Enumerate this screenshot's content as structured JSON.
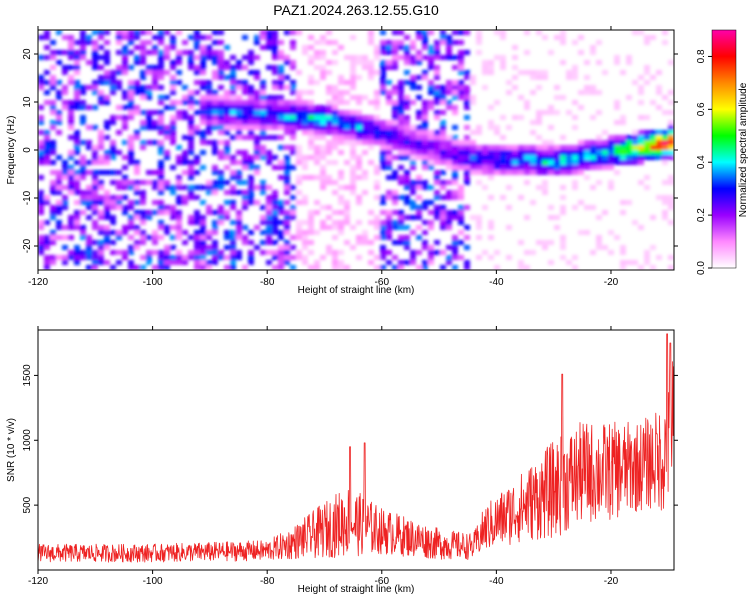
{
  "title": "PAZ1.2024.263.12.55.G10",
  "chart_data": [
    {
      "type": "heatmap",
      "xlabel": "Height of straight line (km)",
      "ylabel": "Frequency (Hz)",
      "xlim": [
        -120,
        -9
      ],
      "ylim": [
        -25,
        25
      ],
      "x_ticks": [
        -120,
        -100,
        -80,
        -60,
        -40,
        -20
      ],
      "y_ticks": [
        -20,
        -10,
        0,
        10,
        20
      ],
      "colorbar": {
        "label": "Normalized spectral amplitude",
        "range": [
          0,
          0.9
        ],
        "ticks": [
          0.0,
          0.2,
          0.4,
          0.6,
          0.8
        ],
        "colors": [
          "#ffffff",
          "#ff88ff",
          "#9900ff",
          "#0000ff",
          "#00ffff",
          "#00ff00",
          "#ffff00",
          "#ff8800",
          "#ff0000",
          "#ff00aa"
        ]
      },
      "ridge": {
        "x": [
          -90,
          -80,
          -70,
          -60,
          -50,
          -45,
          -40,
          -30,
          -20,
          -10
        ],
        "frequency": [
          8,
          7.5,
          6.5,
          3.5,
          0,
          -1.5,
          -2,
          -2.5,
          -0.5,
          1.5
        ],
        "amplitude": [
          0.3,
          0.35,
          0.4,
          0.3,
          0.25,
          0.3,
          0.35,
          0.4,
          0.45,
          0.85
        ]
      },
      "background_amplitude": 0.15
    },
    {
      "type": "line",
      "xlabel": "Height of straight line (km)",
      "ylabel": "SNR (10 * v/v)",
      "xlim": [
        -120,
        -9
      ],
      "ylim": [
        0,
        1850
      ],
      "x_ticks": [
        -120,
        -100,
        -80,
        -60,
        -40,
        -20
      ],
      "y_ticks": [
        500,
        1000,
        1500
      ],
      "series_color": "#ee2222",
      "envelope": {
        "x": [
          -120,
          -100,
          -80,
          -76,
          -66,
          -60,
          -50,
          -44,
          -42,
          -35,
          -30,
          -25,
          -20,
          -15,
          -12,
          -10,
          -9
        ],
        "mean": [
          130,
          130,
          150,
          200,
          380,
          300,
          200,
          180,
          320,
          500,
          620,
          750,
          760,
          800,
          850,
          900,
          1100
        ],
        "spread": [
          70,
          70,
          80,
          120,
          280,
          180,
          120,
          100,
          180,
          280,
          380,
          400,
          380,
          350,
          380,
          500,
          700
        ]
      },
      "peaks": [
        [
          -65.5,
          950
        ],
        [
          -63,
          980
        ],
        [
          -28.5,
          1510
        ],
        [
          -12,
          1050
        ],
        [
          -10.2,
          1820
        ],
        [
          -9.6,
          1750
        ]
      ]
    }
  ]
}
